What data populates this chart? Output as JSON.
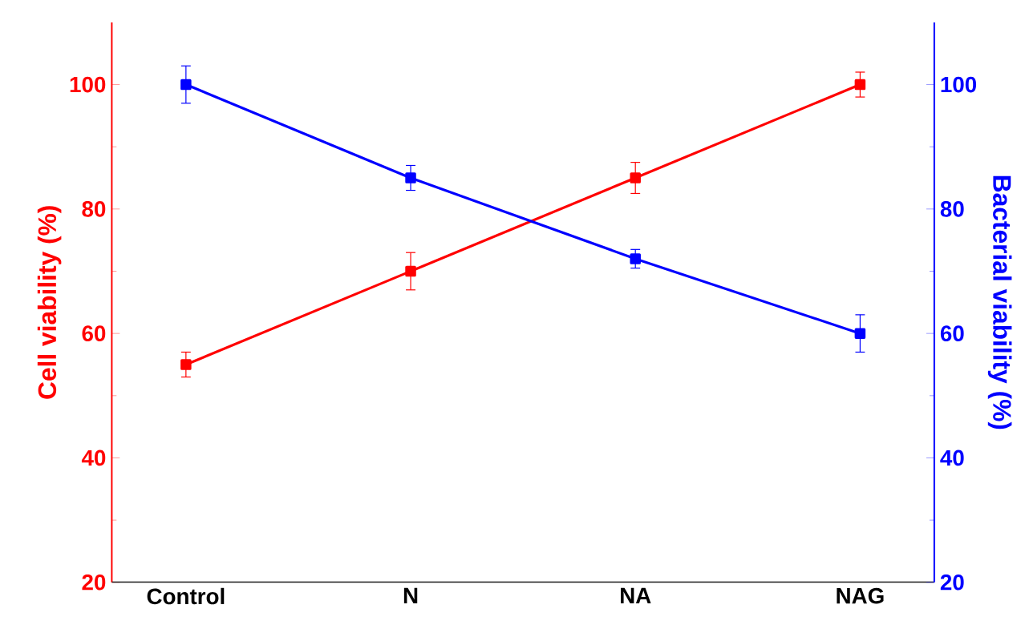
{
  "chart_data": {
    "type": "line",
    "ylabel": "Cell viability (%)",
    "y2label": "Bacterial viability (%)",
    "categories": [
      "Control",
      "N",
      "NA",
      "NAG"
    ],
    "ylim": [
      20,
      110
    ],
    "yticks": [
      20,
      40,
      60,
      80,
      100
    ],
    "y2lim": [
      20,
      110
    ],
    "y2ticks": [
      20,
      40,
      60,
      80,
      100
    ],
    "marker": "square",
    "line_style": "solid",
    "series": [
      {
        "color": "#ff0000",
        "values": [
          55,
          70,
          85,
          100
        ],
        "errors": [
          2,
          3,
          2.5,
          2
        ]
      },
      {
        "color": "#0000ff",
        "axis": "y2",
        "values": [
          100,
          85,
          72,
          60
        ],
        "errors": [
          3,
          2,
          1.5,
          3
        ]
      }
    ]
  }
}
